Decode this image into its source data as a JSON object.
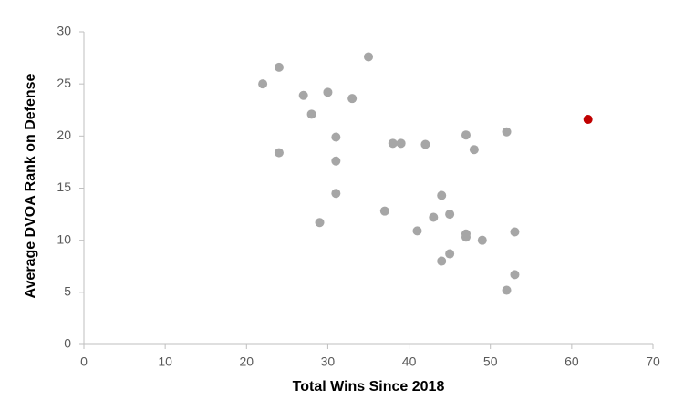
{
  "chart_data": {
    "type": "scatter",
    "x_label": "Total Wins Since 2018",
    "y_label": "Average DVOA Rank on Defense",
    "x": [
      22,
      24,
      24,
      27,
      28,
      29,
      30,
      31,
      31,
      31,
      33,
      35,
      37,
      38,
      39,
      41,
      42,
      43,
      44,
      44,
      45,
      45,
      47,
      47,
      47,
      48,
      49,
      52,
      52,
      53,
      53,
      62
    ],
    "values": [
      25.0,
      26.6,
      18.4,
      23.9,
      22.1,
      11.7,
      24.2,
      19.9,
      17.6,
      14.5,
      23.6,
      27.6,
      12.8,
      19.3,
      19.3,
      10.9,
      19.2,
      12.2,
      14.3,
      8.0,
      12.5,
      8.7,
      20.1,
      10.6,
      10.3,
      18.7,
      10.0,
      20.4,
      5.2,
      10.8,
      6.7,
      21.6
    ],
    "colors": [
      "#a6a6a6",
      "#a6a6a6",
      "#a6a6a6",
      "#a6a6a6",
      "#a6a6a6",
      "#a6a6a6",
      "#a6a6a6",
      "#a6a6a6",
      "#a6a6a6",
      "#a6a6a6",
      "#a6a6a6",
      "#a6a6a6",
      "#a6a6a6",
      "#a6a6a6",
      "#a6a6a6",
      "#a6a6a6",
      "#a6a6a6",
      "#a6a6a6",
      "#a6a6a6",
      "#a6a6a6",
      "#a6a6a6",
      "#a6a6a6",
      "#a6a6a6",
      "#a6a6a6",
      "#a6a6a6",
      "#a6a6a6",
      "#a6a6a6",
      "#a6a6a6",
      "#a6a6a6",
      "#a6a6a6",
      "#a6a6a6",
      "#c00000"
    ],
    "xlim": [
      0,
      70
    ],
    "xticks": [
      0,
      10,
      20,
      30,
      40,
      50,
      60,
      70
    ],
    "ylim": [
      0,
      30
    ],
    "yticks": [
      0,
      5,
      10,
      15,
      20,
      25,
      30
    ],
    "grid": false
  }
}
